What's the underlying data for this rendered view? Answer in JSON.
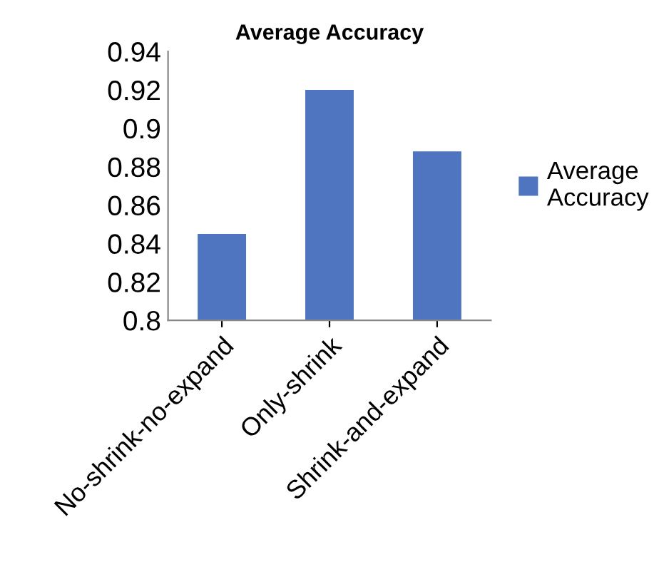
{
  "chart_data": {
    "type": "bar",
    "title": "Average Accuracy",
    "categories": [
      "No-shrink-no-expand",
      "Only-shrink",
      "Shrink-and-expand"
    ],
    "series": [
      {
        "name": "Average Accuracy",
        "color": "#4f75c0",
        "values": [
          0.845,
          0.92,
          0.888
        ]
      }
    ],
    "ylim": [
      0.8,
      0.94
    ],
    "yticks": [
      0.8,
      0.82,
      0.84,
      0.86,
      0.88,
      0.9,
      0.92,
      0.94
    ],
    "grid": false,
    "legend": "right"
  }
}
